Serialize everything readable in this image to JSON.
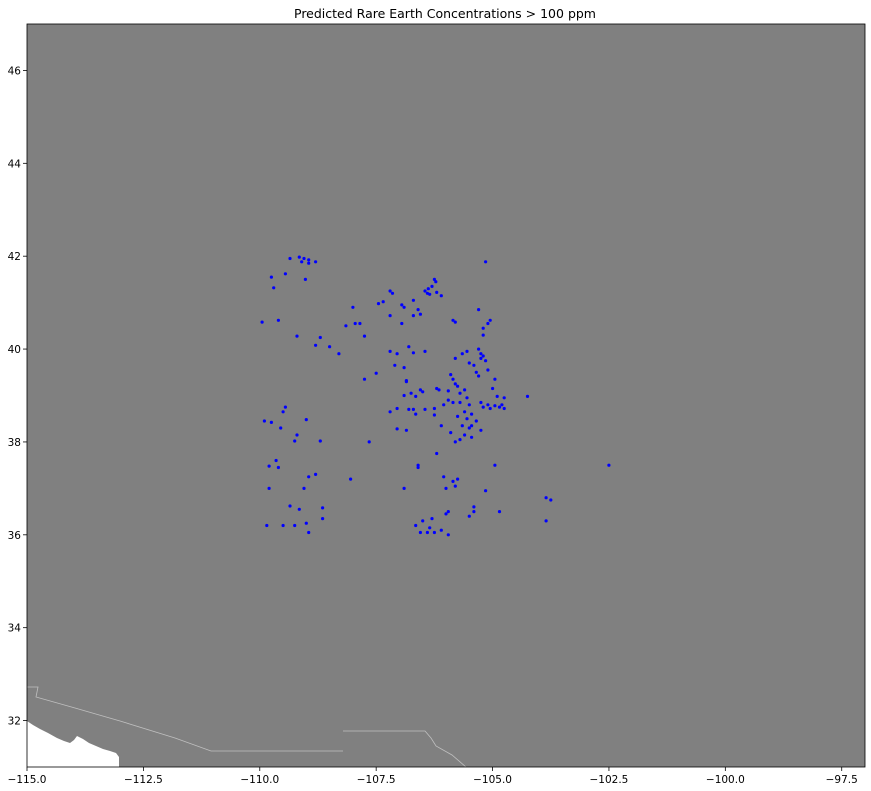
{
  "chart_data": {
    "type": "scatter",
    "title": "Predicted Rare Earth Concentrations > 100 ppm",
    "xlabel": "",
    "ylabel": "",
    "xlim": [
      -115.0,
      -97.0
    ],
    "ylim": [
      31.0,
      47.0
    ],
    "x_ticks": [
      -115.0,
      -112.5,
      -110.0,
      -107.5,
      -105.0,
      -102.5,
      -100.0,
      -97.5
    ],
    "x_tick_labels": [
      "−115.0",
      "−112.5",
      "−110.0",
      "−107.5",
      "−105.0",
      "−102.5",
      "−100.0",
      "−97.5"
    ],
    "y_ticks": [
      32,
      34,
      36,
      38,
      40,
      42,
      44,
      46
    ],
    "y_tick_labels": [
      "32",
      "34",
      "36",
      "38",
      "40",
      "42",
      "44",
      "46"
    ],
    "grid": false,
    "legend": "none",
    "colors": {
      "land": "#808080",
      "outside_boundary": "#ffffff",
      "border_lines": "#bfbfbf",
      "points": "#0000ff"
    },
    "series": [
      {
        "points": [
          [
            -109.15,
            41.98
          ],
          [
            -109.05,
            41.95
          ],
          [
            -108.95,
            41.92
          ],
          [
            -109.1,
            41.88
          ],
          [
            -108.95,
            41.85
          ],
          [
            -109.35,
            41.95
          ],
          [
            -108.8,
            41.88
          ],
          [
            -109.45,
            41.62
          ],
          [
            -109.75,
            41.55
          ],
          [
            -109.02,
            41.5
          ],
          [
            -109.7,
            41.32
          ],
          [
            -109.6,
            40.62
          ],
          [
            -109.95,
            40.58
          ],
          [
            -109.2,
            40.28
          ],
          [
            -108.7,
            40.25
          ],
          [
            -108.8,
            40.08
          ],
          [
            -108.5,
            40.05
          ],
          [
            -108.3,
            39.9
          ],
          [
            -108.15,
            40.5
          ],
          [
            -107.95,
            40.55
          ],
          [
            -107.85,
            40.55
          ],
          [
            -108.0,
            40.9
          ],
          [
            -107.75,
            40.28
          ],
          [
            -107.75,
            39.35
          ],
          [
            -107.5,
            39.48
          ],
          [
            -107.45,
            40.98
          ],
          [
            -107.35,
            41.02
          ],
          [
            -107.2,
            41.25
          ],
          [
            -107.15,
            41.2
          ],
          [
            -106.95,
            40.95
          ],
          [
            -106.9,
            40.9
          ],
          [
            -106.7,
            41.05
          ],
          [
            -106.6,
            40.85
          ],
          [
            -107.2,
            40.72
          ],
          [
            -106.95,
            40.55
          ],
          [
            -106.7,
            40.72
          ],
          [
            -106.55,
            40.75
          ],
          [
            -106.45,
            41.25
          ],
          [
            -106.4,
            41.2
          ],
          [
            -106.38,
            41.3
          ],
          [
            -106.3,
            41.35
          ],
          [
            -106.25,
            41.5
          ],
          [
            -106.22,
            41.45
          ],
          [
            -106.35,
            41.18
          ],
          [
            -106.2,
            41.22
          ],
          [
            -106.1,
            41.15
          ],
          [
            -105.85,
            40.62
          ],
          [
            -105.8,
            40.58
          ],
          [
            -106.8,
            40.05
          ],
          [
            -106.7,
            39.92
          ],
          [
            -106.45,
            39.95
          ],
          [
            -107.2,
            39.95
          ],
          [
            -107.1,
            39.65
          ],
          [
            -106.9,
            39.6
          ],
          [
            -106.85,
            39.3
          ],
          [
            -106.55,
            39.12
          ],
          [
            -106.5,
            39.08
          ],
          [
            -106.2,
            39.15
          ],
          [
            -106.15,
            39.12
          ],
          [
            -106.9,
            39.0
          ],
          [
            -106.75,
            39.05
          ],
          [
            -106.65,
            38.98
          ],
          [
            -107.05,
            38.72
          ],
          [
            -106.8,
            38.7
          ],
          [
            -106.65,
            38.6
          ],
          [
            -106.45,
            38.7
          ],
          [
            -106.25,
            38.72
          ],
          [
            -106.05,
            38.8
          ],
          [
            -105.95,
            38.9
          ],
          [
            -105.85,
            38.85
          ],
          [
            -105.9,
            39.45
          ],
          [
            -105.85,
            39.35
          ],
          [
            -105.8,
            39.25
          ],
          [
            -105.75,
            39.2
          ],
          [
            -105.7,
            39.05
          ],
          [
            -105.6,
            39.12
          ],
          [
            -105.55,
            38.95
          ],
          [
            -105.5,
            38.8
          ],
          [
            -105.6,
            38.65
          ],
          [
            -105.45,
            38.6
          ],
          [
            -105.55,
            38.5
          ],
          [
            -105.65,
            38.35
          ],
          [
            -105.45,
            38.35
          ],
          [
            -105.5,
            38.3
          ],
          [
            -105.6,
            38.15
          ],
          [
            -105.7,
            38.05
          ],
          [
            -105.8,
            38.0
          ],
          [
            -105.9,
            38.2
          ],
          [
            -105.45,
            38.1
          ],
          [
            -105.25,
            38.25
          ],
          [
            -105.35,
            38.45
          ],
          [
            -105.8,
            39.8
          ],
          [
            -105.65,
            39.9
          ],
          [
            -105.5,
            39.7
          ],
          [
            -105.4,
            39.65
          ],
          [
            -105.35,
            39.5
          ],
          [
            -105.3,
            39.42
          ],
          [
            -105.25,
            39.8
          ],
          [
            -105.2,
            39.85
          ],
          [
            -105.25,
            39.9
          ],
          [
            -105.15,
            39.75
          ],
          [
            -105.1,
            39.55
          ],
          [
            -105.3,
            40.0
          ],
          [
            -105.2,
            40.3
          ],
          [
            -105.2,
            40.45
          ],
          [
            -105.1,
            40.55
          ],
          [
            -105.05,
            40.62
          ],
          [
            -105.3,
            40.85
          ],
          [
            -105.15,
            41.88
          ],
          [
            -105.25,
            38.85
          ],
          [
            -105.2,
            38.75
          ],
          [
            -105.1,
            38.8
          ],
          [
            -105.05,
            38.72
          ],
          [
            -104.95,
            38.78
          ],
          [
            -104.85,
            38.75
          ],
          [
            -104.8,
            38.8
          ],
          [
            -104.75,
            38.95
          ],
          [
            -104.75,
            38.72
          ],
          [
            -104.9,
            38.98
          ],
          [
            -105.0,
            39.15
          ],
          [
            -104.95,
            39.35
          ],
          [
            -104.25,
            38.98
          ],
          [
            -109.9,
            38.45
          ],
          [
            -109.75,
            38.42
          ],
          [
            -109.5,
            38.65
          ],
          [
            -109.45,
            38.75
          ],
          [
            -109.55,
            38.3
          ],
          [
            -109.2,
            38.15
          ],
          [
            -109.25,
            38.02
          ],
          [
            -109.0,
            38.48
          ],
          [
            -108.7,
            38.02
          ],
          [
            -109.8,
            37.48
          ],
          [
            -109.6,
            37.45
          ],
          [
            -109.65,
            37.6
          ],
          [
            -109.8,
            37.0
          ],
          [
            -109.35,
            36.62
          ],
          [
            -109.15,
            36.55
          ],
          [
            -109.05,
            37.0
          ],
          [
            -108.8,
            37.3
          ],
          [
            -108.95,
            37.25
          ],
          [
            -108.65,
            36.58
          ],
          [
            -108.65,
            36.35
          ],
          [
            -109.0,
            36.25
          ],
          [
            -109.5,
            36.2
          ],
          [
            -109.85,
            36.2
          ],
          [
            -109.25,
            36.2
          ],
          [
            -108.95,
            36.05
          ],
          [
            -108.05,
            37.2
          ],
          [
            -107.65,
            38.0
          ],
          [
            -107.2,
            38.65
          ],
          [
            -107.05,
            38.28
          ],
          [
            -106.85,
            38.25
          ],
          [
            -106.7,
            38.7
          ],
          [
            -106.2,
            37.75
          ],
          [
            -106.6,
            37.45
          ],
          [
            -106.6,
            37.5
          ],
          [
            -106.9,
            37.0
          ],
          [
            -106.65,
            36.2
          ],
          [
            -106.5,
            36.3
          ],
          [
            -106.55,
            36.05
          ],
          [
            -106.4,
            36.05
          ],
          [
            -106.35,
            36.15
          ],
          [
            -106.3,
            36.35
          ],
          [
            -106.25,
            36.05
          ],
          [
            -106.1,
            36.1
          ],
          [
            -105.95,
            36.0
          ],
          [
            -106.0,
            36.45
          ],
          [
            -106.05,
            37.25
          ],
          [
            -106.0,
            37.0
          ],
          [
            -105.85,
            37.15
          ],
          [
            -105.75,
            37.2
          ],
          [
            -105.8,
            37.05
          ],
          [
            -105.95,
            36.5
          ],
          [
            -105.5,
            36.4
          ],
          [
            -105.4,
            36.6
          ],
          [
            -105.4,
            36.5
          ],
          [
            -105.15,
            36.95
          ],
          [
            -104.85,
            36.5
          ],
          [
            -104.95,
            37.5
          ],
          [
            -103.85,
            36.8
          ],
          [
            -103.75,
            36.75
          ],
          [
            -103.85,
            36.3
          ],
          [
            -102.5,
            37.5
          ],
          [
            -106.85,
            39.32
          ],
          [
            -107.05,
            39.9
          ],
          [
            -105.95,
            39.1
          ],
          [
            -105.7,
            38.85
          ],
          [
            -105.75,
            38.55
          ],
          [
            -106.25,
            38.58
          ],
          [
            -106.1,
            38.35
          ],
          [
            -105.55,
            39.95
          ]
        ]
      }
    ]
  }
}
